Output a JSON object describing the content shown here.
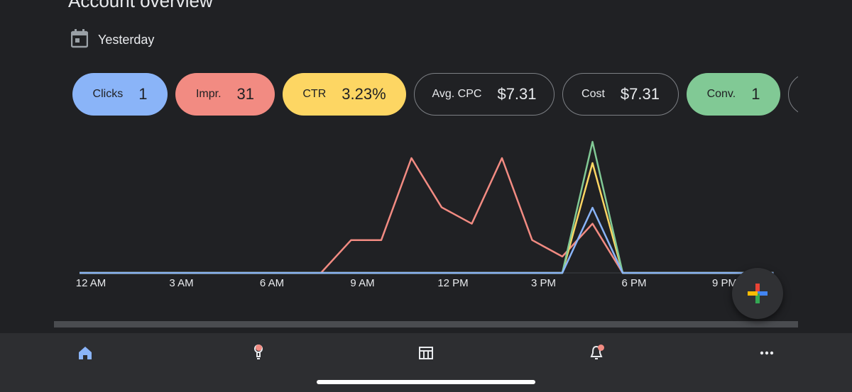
{
  "page": {
    "title": "Account overview",
    "date_range": "Yesterday"
  },
  "metrics": [
    {
      "name": "clicks",
      "label": "Clicks",
      "value": "1",
      "color": "#8ab4f8",
      "filled": true
    },
    {
      "name": "impr",
      "label": "Impr.",
      "value": "31",
      "color": "#f28b82",
      "filled": true
    },
    {
      "name": "ctr",
      "label": "CTR",
      "value": "3.23%",
      "color": "#fdd663",
      "filled": true
    },
    {
      "name": "avg-cpc",
      "label": "Avg. CPC",
      "value": "$7.31",
      "color": null,
      "filled": false
    },
    {
      "name": "cost",
      "label": "Cost",
      "value": "$7.31",
      "color": null,
      "filled": false
    },
    {
      "name": "conv",
      "label": "Conv.",
      "value": "1",
      "color": "#81c995",
      "filled": true
    }
  ],
  "chart_data": {
    "type": "line",
    "x_tick_labels": [
      "12 AM",
      "3 AM",
      "6 AM",
      "9 AM",
      "12 PM",
      "3 PM",
      "6 PM",
      "9 PM"
    ],
    "x_tick_hours": [
      0,
      3,
      6,
      9,
      12,
      15,
      18,
      21
    ],
    "x": [
      0,
      1,
      2,
      3,
      4,
      5,
      6,
      7,
      8,
      9,
      10,
      11,
      12,
      13,
      14,
      15,
      16,
      17,
      18,
      19,
      20,
      21,
      22,
      23
    ],
    "grid": false,
    "legend": "none (series selected via metric chips above)",
    "series": [
      {
        "metric": "Impr.",
        "color": "#f28b82",
        "max_value": 7,
        "values": [
          0,
          0,
          0,
          0,
          0,
          0,
          0,
          0,
          0,
          2,
          2,
          7,
          4,
          3,
          7,
          2,
          1,
          3,
          0,
          0,
          0,
          0,
          0,
          0
        ]
      },
      {
        "metric": "Clicks",
        "color": "#8ab4f8",
        "max_value": 1,
        "values": [
          0,
          0,
          0,
          0,
          0,
          0,
          0,
          0,
          0,
          0,
          0,
          0,
          0,
          0,
          0,
          0,
          0,
          1,
          0,
          0,
          0,
          0,
          0,
          0
        ]
      },
      {
        "metric": "CTR",
        "color": "#fdd663",
        "max_value": 0.5,
        "values": [
          0,
          0,
          0,
          0,
          0,
          0,
          0,
          0,
          0,
          0,
          0,
          0,
          0,
          0,
          0,
          0,
          0,
          0.5,
          0,
          0,
          0,
          0,
          0,
          0
        ]
      },
      {
        "metric": "Conv.",
        "color": "#81c995",
        "max_value": 1,
        "values": [
          0,
          0,
          0,
          0,
          0,
          0,
          0,
          0,
          0,
          0,
          0,
          0,
          0,
          0,
          0,
          0,
          0,
          1,
          0,
          0,
          0,
          0,
          0,
          0
        ]
      }
    ]
  },
  "fab": {
    "icon": "plus-icon",
    "colors": [
      "#ea4335",
      "#4285f4",
      "#fbbc04",
      "#34a853"
    ]
  },
  "bottom_nav": [
    {
      "name": "overview",
      "icon": "home-icon",
      "active": true,
      "badge": false
    },
    {
      "name": "recommendations",
      "icon": "lightbulb-icon",
      "active": false,
      "badge": true
    },
    {
      "name": "campaigns",
      "icon": "table-icon",
      "active": false,
      "badge": false
    },
    {
      "name": "notifications",
      "icon": "bell-icon",
      "active": false,
      "badge": true
    },
    {
      "name": "more",
      "icon": "more-horiz-icon",
      "active": false,
      "badge": false
    }
  ],
  "colors": {
    "background": "#202124",
    "nav_background": "#2d2e31",
    "accent": "#8ab4f8",
    "badge": "#f28b82"
  }
}
